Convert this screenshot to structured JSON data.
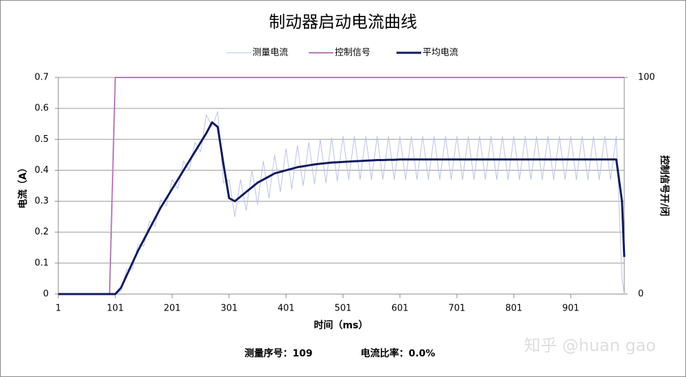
{
  "chart_data": {
    "type": "line",
    "title": "制动器启动电流曲线",
    "x_label": "时间（ms）",
    "y_label": "电流（A）",
    "y2_label": "控制信号开/闭",
    "footer": [
      "测量序号：109",
      "电流比率：0.0%"
    ],
    "watermark": "知乎 @huan gao",
    "x": [
      1,
      11,
      21,
      31,
      41,
      51,
      61,
      71,
      81,
      91,
      101,
      111,
      121,
      131,
      141,
      151,
      161,
      171,
      181,
      191,
      201,
      211,
      221,
      231,
      241,
      251,
      261,
      271,
      281,
      291,
      301,
      311,
      321,
      331,
      341,
      351,
      361,
      371,
      381,
      391,
      401,
      411,
      421,
      431,
      441,
      451,
      461,
      471,
      481,
      491,
      501,
      511,
      521,
      531,
      541,
      551,
      561,
      571,
      581,
      591,
      601,
      611,
      621,
      631,
      641,
      651,
      661,
      671,
      681,
      691,
      701,
      711,
      721,
      731,
      741,
      751,
      761,
      771,
      781,
      791,
      801,
      811,
      821,
      831,
      841,
      851,
      861,
      871,
      881,
      891,
      901,
      911,
      921,
      931,
      941,
      951,
      961,
      971,
      981,
      991,
      995
    ],
    "xlim": [
      1,
      995
    ],
    "xticks": [
      1,
      101,
      201,
      301,
      401,
      501,
      601,
      701,
      801,
      901
    ],
    "ylim": [
      0,
      0.7
    ],
    "yticks": [
      0,
      0.1,
      0.2,
      0.3,
      0.4,
      0.5,
      0.6,
      0.7
    ],
    "y2lim": [
      0,
      100
    ],
    "y2ticks": [
      0,
      100
    ],
    "grid": true,
    "legend": "top",
    "series": [
      {
        "name": "测量电流",
        "color": "#b9c0e8",
        "width": 1,
        "values": [
          0,
          0,
          0,
          0,
          0,
          0,
          0,
          0,
          0,
          0,
          0,
          0.01,
          0.08,
          0.08,
          0.16,
          0.155,
          0.235,
          0.22,
          0.305,
          0.285,
          0.37,
          0.34,
          0.43,
          0.4,
          0.49,
          0.46,
          0.58,
          0.54,
          0.59,
          0.36,
          0.37,
          0.25,
          0.37,
          0.27,
          0.4,
          0.29,
          0.43,
          0.31,
          0.45,
          0.33,
          0.47,
          0.34,
          0.48,
          0.35,
          0.49,
          0.355,
          0.5,
          0.36,
          0.505,
          0.365,
          0.51,
          0.37,
          0.51,
          0.37,
          0.51,
          0.37,
          0.51,
          0.37,
          0.51,
          0.37,
          0.51,
          0.37,
          0.51,
          0.37,
          0.51,
          0.37,
          0.51,
          0.37,
          0.51,
          0.37,
          0.51,
          0.37,
          0.51,
          0.37,
          0.51,
          0.37,
          0.51,
          0.37,
          0.51,
          0.37,
          0.51,
          0.37,
          0.51,
          0.37,
          0.51,
          0.37,
          0.51,
          0.37,
          0.51,
          0.37,
          0.51,
          0.37,
          0.51,
          0.37,
          0.51,
          0.37,
          0.51,
          0.37,
          0.51,
          0.05,
          0
        ]
      },
      {
        "name": "控制信号",
        "color": "#b87ab8",
        "width": 2,
        "axis": "y2",
        "values": [
          0,
          0,
          0,
          0,
          0,
          0,
          0,
          0,
          0,
          0,
          100,
          100,
          100,
          100,
          100,
          100,
          100,
          100,
          100,
          100,
          100,
          100,
          100,
          100,
          100,
          100,
          100,
          100,
          100,
          100,
          100,
          100,
          100,
          100,
          100,
          100,
          100,
          100,
          100,
          100,
          100,
          100,
          100,
          100,
          100,
          100,
          100,
          100,
          100,
          100,
          100,
          100,
          100,
          100,
          100,
          100,
          100,
          100,
          100,
          100,
          100,
          100,
          100,
          100,
          100,
          100,
          100,
          100,
          100,
          100,
          100,
          100,
          100,
          100,
          100,
          100,
          100,
          100,
          100,
          100,
          100,
          100,
          100,
          100,
          100,
          100,
          100,
          100,
          100,
          100,
          100,
          100,
          100,
          100,
          100,
          100,
          100,
          100,
          100,
          100,
          100
        ]
      },
      {
        "name": "平均电流",
        "color": "#0e1a5e",
        "width": 3,
        "values": [
          0,
          0,
          0,
          0,
          0,
          0,
          0,
          0,
          0,
          0,
          0,
          0.02,
          0.06,
          0.1,
          0.14,
          0.175,
          0.21,
          0.245,
          0.28,
          0.31,
          0.34,
          0.37,
          0.4,
          0.43,
          0.46,
          0.49,
          0.52,
          0.555,
          0.54,
          0.42,
          0.31,
          0.3,
          0.315,
          0.33,
          0.345,
          0.36,
          0.37,
          0.38,
          0.39,
          0.395,
          0.4,
          0.405,
          0.41,
          0.413,
          0.416,
          0.419,
          0.421,
          0.423,
          0.425,
          0.426,
          0.427,
          0.428,
          0.429,
          0.43,
          0.431,
          0.432,
          0.433,
          0.433,
          0.434,
          0.434,
          0.435,
          0.435,
          0.435,
          0.435,
          0.435,
          0.435,
          0.435,
          0.435,
          0.435,
          0.435,
          0.435,
          0.435,
          0.435,
          0.435,
          0.435,
          0.435,
          0.435,
          0.435,
          0.435,
          0.435,
          0.435,
          0.435,
          0.435,
          0.435,
          0.435,
          0.435,
          0.435,
          0.435,
          0.435,
          0.435,
          0.435,
          0.435,
          0.435,
          0.435,
          0.435,
          0.435,
          0.435,
          0.435,
          0.435,
          0.3,
          0.12
        ]
      }
    ]
  }
}
